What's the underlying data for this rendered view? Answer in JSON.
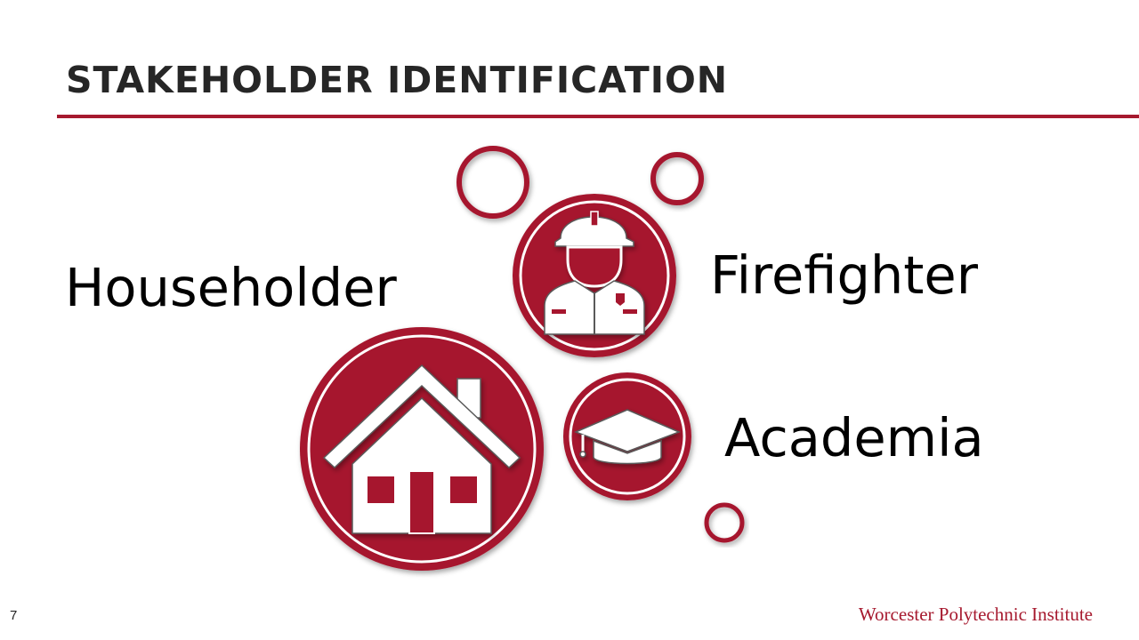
{
  "slide": {
    "title": "STAKEHOLDER IDENTIFICATION",
    "page_number": "7",
    "footer": "Worcester Polytechnic Institute"
  },
  "stakeholders": [
    {
      "label": "Householder",
      "icon": "house-icon"
    },
    {
      "label": "Firefighter",
      "icon": "firefighter-icon"
    },
    {
      "label": "Academia",
      "icon": "graduation-cap-icon"
    }
  ],
  "colors": {
    "accent": "#a6192e",
    "title": "#262626",
    "text": "#000000",
    "background": "#ffffff"
  }
}
